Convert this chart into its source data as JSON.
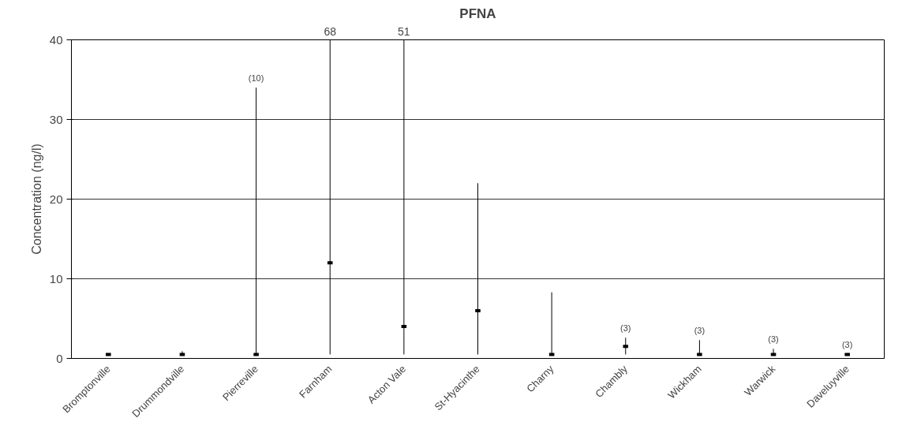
{
  "chart_data": {
    "type": "scatter",
    "title": "PFNA",
    "ylabel": "Concentration (ng/l)",
    "categories": [
      "Bromptonville",
      "Drummondville",
      "Pierreville",
      "Farnham",
      "Acton Vale",
      "St-Hyacinthe",
      "Charny",
      "Chambly",
      "Wickham",
      "Warwick",
      "Daveluyville"
    ],
    "values": [
      0.5,
      0.5,
      0.5,
      12,
      4,
      6,
      0.5,
      1.5,
      0.5,
      0.5,
      0.5
    ],
    "errors": [
      [
        0.5,
        0.5
      ],
      [
        0.5,
        0.9
      ],
      [
        0.5,
        34
      ],
      [
        0.5,
        40
      ],
      [
        0.5,
        40
      ],
      [
        0.5,
        22
      ],
      [
        0.5,
        8.3
      ],
      [
        0.5,
        2.6
      ],
      [
        0.5,
        2.3
      ],
      [
        0.5,
        1.2
      ],
      [
        0.5,
        0.5
      ]
    ],
    "color": "#000000",
    "marker": "square",
    "ylim": [
      0,
      40
    ],
    "yticks": [
      0,
      10,
      20,
      30,
      40
    ],
    "grid": "y",
    "annotations": [
      "68",
      "51",
      "(10)",
      "(3)",
      "(3)",
      "(3)",
      "(3)"
    ]
  }
}
